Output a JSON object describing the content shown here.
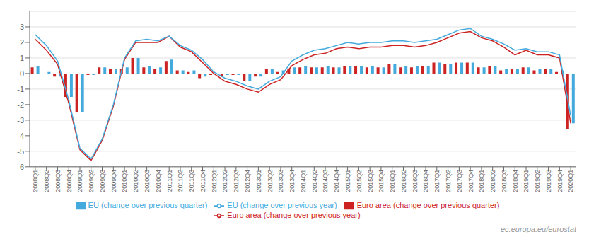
{
  "chart_data": {
    "type": "bar",
    "categories": [
      "2008Q1",
      "2008Q2",
      "2008Q3",
      "2008Q4",
      "2009Q1",
      "2009Q2",
      "2009Q3",
      "2009Q4",
      "2010Q1",
      "2010Q2",
      "2010Q3",
      "2010Q4",
      "2011Q1",
      "2011Q2",
      "2011Q3",
      "2011Q4",
      "2012Q1",
      "2012Q2",
      "2012Q3",
      "2012Q4",
      "2013Q1",
      "2013Q2",
      "2013Q3",
      "2013Q4",
      "2014Q1",
      "2014Q2",
      "2014Q3",
      "2014Q4",
      "2015Q1",
      "2015Q2",
      "2015Q3",
      "2015Q4",
      "2016Q1",
      "2016Q2",
      "2016Q3",
      "2016Q4",
      "2017Q1",
      "2017Q2",
      "2017Q3",
      "2017Q4",
      "2018Q1",
      "2018Q2",
      "2018Q3",
      "2018Q4",
      "2019Q1",
      "2019Q2",
      "2019Q3",
      "2019Q4",
      "2020Q1"
    ],
    "series": [
      {
        "name": "Euro area (change over previous quarter)",
        "type": "bar",
        "color": "#cc2222",
        "values": [
          0.4,
          0.0,
          -0.2,
          -1.5,
          -2.5,
          -0.1,
          0.4,
          0.3,
          0.3,
          1.0,
          0.4,
          0.3,
          0.8,
          0.2,
          0.1,
          -0.3,
          -0.1,
          -0.2,
          -0.1,
          -0.5,
          -0.2,
          0.3,
          0.1,
          0.3,
          0.4,
          0.4,
          0.4,
          0.4,
          0.5,
          0.5,
          0.4,
          0.4,
          0.6,
          0.4,
          0.4,
          0.5,
          0.7,
          0.6,
          0.7,
          0.7,
          0.4,
          0.5,
          0.2,
          0.3,
          0.4,
          0.2,
          0.3,
          0.1,
          -3.6
        ]
      },
      {
        "name": "EU (change over previous quarter)",
        "type": "bar",
        "color": "#44aadd",
        "values": [
          0.5,
          0.1,
          -0.2,
          -1.5,
          -2.5,
          -0.1,
          0.4,
          0.3,
          0.4,
          1.0,
          0.5,
          0.4,
          0.9,
          0.2,
          0.2,
          -0.2,
          0.0,
          -0.1,
          -0.1,
          -0.5,
          -0.2,
          0.3,
          0.2,
          0.4,
          0.5,
          0.4,
          0.5,
          0.4,
          0.5,
          0.5,
          0.5,
          0.4,
          0.6,
          0.5,
          0.5,
          0.5,
          0.7,
          0.6,
          0.7,
          0.7,
          0.4,
          0.5,
          0.3,
          0.3,
          0.4,
          0.3,
          0.3,
          0.2,
          -3.2
        ]
      },
      {
        "name": "Euro area (change over previous year)",
        "type": "line",
        "color": "#cc2222",
        "values": [
          2.2,
          1.5,
          0.6,
          -1.9,
          -4.9,
          -5.6,
          -4.3,
          -2.1,
          0.9,
          2.0,
          2.0,
          2.0,
          2.4,
          1.7,
          1.4,
          0.7,
          0.0,
          -0.5,
          -0.7,
          -1.0,
          -1.2,
          -0.7,
          -0.4,
          0.5,
          0.9,
          1.2,
          1.3,
          1.6,
          1.7,
          1.6,
          1.7,
          1.7,
          1.8,
          1.8,
          1.7,
          1.8,
          2.0,
          2.3,
          2.6,
          2.7,
          2.3,
          2.1,
          1.7,
          1.2,
          1.5,
          1.2,
          1.2,
          1.0,
          -3.2
        ]
      },
      {
        "name": "EU (change over previous year)",
        "type": "line",
        "color": "#44aadd",
        "values": [
          2.5,
          1.8,
          0.8,
          -1.7,
          -4.8,
          -5.5,
          -4.2,
          -2.0,
          1.0,
          2.1,
          2.2,
          2.1,
          2.4,
          1.8,
          1.5,
          0.9,
          0.1,
          -0.3,
          -0.5,
          -0.8,
          -1.0,
          -0.5,
          -0.2,
          0.8,
          1.2,
          1.5,
          1.6,
          1.8,
          2.0,
          1.9,
          2.0,
          2.0,
          2.1,
          2.1,
          2.0,
          2.1,
          2.2,
          2.5,
          2.8,
          2.9,
          2.4,
          2.2,
          1.9,
          1.5,
          1.6,
          1.4,
          1.4,
          1.2,
          -2.7
        ]
      }
    ],
    "ylim": [
      -6,
      4
    ],
    "yticks": [
      -6,
      -5,
      -4,
      -3,
      -2,
      -1,
      0,
      1,
      2,
      3
    ],
    "grid": true,
    "legend": "bottom",
    "annotations": [
      "ec.europa.eu/eurostat"
    ]
  }
}
